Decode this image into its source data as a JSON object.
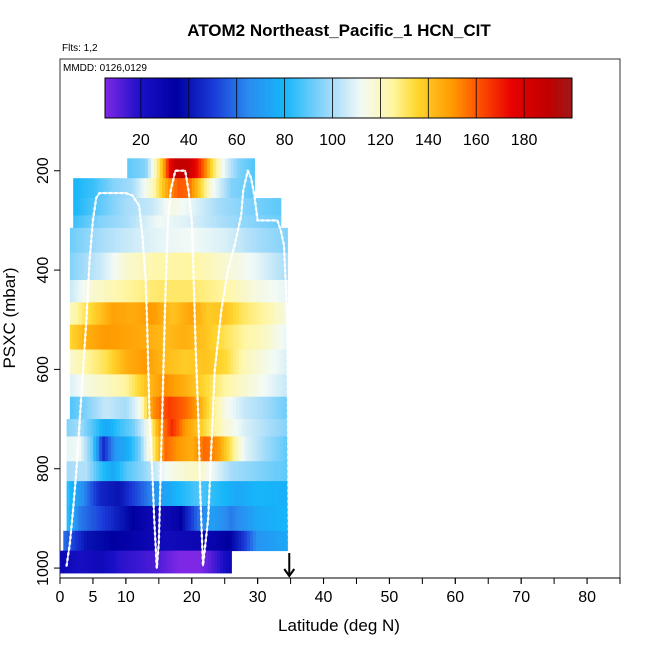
{
  "header": {
    "title": "ATOM2 Northeast_Pacific_1 HCN_CIT",
    "flights_label": "Flts: 1,2",
    "dates_label": "MMDD: 0126,0129"
  },
  "colorbar": {
    "min": 5,
    "max": 200,
    "tick_values": [
      20,
      40,
      60,
      80,
      100,
      120,
      140,
      160,
      180
    ],
    "tick_labels": [
      "20",
      "40",
      "60",
      "80",
      "100",
      "120",
      "140",
      "160",
      "180"
    ],
    "boundaries": [
      20,
      40,
      60,
      80,
      100,
      120,
      140,
      160,
      180
    ],
    "color_stops": [
      {
        "v": 5,
        "c": "#7e28e6"
      },
      {
        "v": 20,
        "c": "#1a10c8"
      },
      {
        "v": 35,
        "c": "#0000a0"
      },
      {
        "v": 50,
        "c": "#1a3ad8"
      },
      {
        "v": 65,
        "c": "#2a8cf0"
      },
      {
        "v": 80,
        "c": "#16b6fa"
      },
      {
        "v": 100,
        "c": "#a6dcfa"
      },
      {
        "v": 112,
        "c": "#f2faf6"
      },
      {
        "v": 125,
        "c": "#fff6a2"
      },
      {
        "v": 135,
        "c": "#ffd830"
      },
      {
        "v": 150,
        "c": "#ff9a00"
      },
      {
        "v": 160,
        "c": "#ff5800"
      },
      {
        "v": 175,
        "c": "#e80000"
      },
      {
        "v": 190,
        "c": "#c00000"
      },
      {
        "v": 200,
        "c": "#a01818"
      }
    ]
  },
  "chart_data": {
    "type": "heatmap",
    "title": "ATOM2 Northeast_Pacific_1 HCN_CIT",
    "xlabel": "Latitude (deg N)",
    "ylabel": "PSXC (mbar)",
    "x_ticks": [
      0,
      5,
      10,
      20,
      30,
      40,
      50,
      60,
      70,
      80
    ],
    "x_tick_labels": [
      "0",
      "5",
      "10",
      "20",
      "30",
      "40",
      "50",
      "60",
      "70",
      "80"
    ],
    "y_ticks": [
      200,
      400,
      600,
      800,
      1000
    ],
    "y_tick_labels": [
      "200",
      "400",
      "600",
      "800",
      "1000"
    ],
    "xlim": [
      0,
      85
    ],
    "ylim": [
      1020,
      -25
    ],
    "layers": [
      {
        "p0": 175,
        "p1": 215,
        "x0": 10.2,
        "x1": 29.5,
        "knots": [
          [
            10.2,
            90
          ],
          [
            13,
            95
          ],
          [
            15.5,
            140
          ],
          [
            16.5,
            170
          ],
          [
            17.5,
            188
          ],
          [
            19.5,
            188
          ],
          [
            21,
            170
          ],
          [
            22,
            155
          ],
          [
            23,
            135
          ],
          [
            25,
            110
          ],
          [
            27,
            95
          ],
          [
            29.5,
            88
          ]
        ]
      },
      {
        "p0": 215,
        "p1": 255,
        "x0": 2,
        "x1": 29.5,
        "knots": [
          [
            2,
            80
          ],
          [
            5,
            85
          ],
          [
            8,
            95
          ],
          [
            11,
            100
          ],
          [
            14,
            120
          ],
          [
            16.5,
            150
          ],
          [
            18,
            160
          ],
          [
            19.5,
            158
          ],
          [
            21,
            140
          ],
          [
            23,
            115
          ],
          [
            26,
            95
          ],
          [
            29.5,
            90
          ]
        ]
      },
      {
        "p0": 255,
        "p1": 290,
        "x0": 2,
        "x1": 33.5,
        "knots": [
          [
            2,
            80
          ],
          [
            6,
            90
          ],
          [
            10,
            100
          ],
          [
            14,
            105
          ],
          [
            17,
            115
          ],
          [
            20,
            110
          ],
          [
            24,
            100
          ],
          [
            28,
            95
          ],
          [
            33.5,
            90
          ]
        ]
      },
      {
        "p0": 290,
        "p1": 315,
        "x0": 2,
        "x1": 33.5,
        "knots": [
          [
            2,
            85
          ],
          [
            6,
            95
          ],
          [
            10,
            100
          ],
          [
            15,
            112
          ],
          [
            20,
            108
          ],
          [
            25,
            100
          ],
          [
            30,
            95
          ],
          [
            33.5,
            92
          ]
        ]
      },
      {
        "p0": 315,
        "p1": 365,
        "x0": 1.5,
        "x1": 34.5,
        "knots": [
          [
            1.5,
            92
          ],
          [
            6,
            100
          ],
          [
            10,
            105
          ],
          [
            15,
            110
          ],
          [
            20,
            112
          ],
          [
            25,
            108
          ],
          [
            30,
            100
          ],
          [
            34.5,
            95
          ]
        ]
      },
      {
        "p0": 365,
        "p1": 420,
        "x0": 1.5,
        "x1": 34.5,
        "knots": [
          [
            1.5,
            95
          ],
          [
            6,
            105
          ],
          [
            10,
            118
          ],
          [
            15,
            124
          ],
          [
            20,
            125
          ],
          [
            25,
            118
          ],
          [
            30,
            110
          ],
          [
            34.5,
            100
          ]
        ]
      },
      {
        "p0": 420,
        "p1": 465,
        "x0": 1.5,
        "x1": 34.5,
        "knots": [
          [
            1.5,
            105
          ],
          [
            5,
            118
          ],
          [
            10,
            125
          ],
          [
            15,
            130
          ],
          [
            20,
            130
          ],
          [
            25,
            125
          ],
          [
            30,
            115
          ],
          [
            34.5,
            110
          ]
        ]
      },
      {
        "p0": 465,
        "p1": 510,
        "x0": 1.5,
        "x1": 34.5,
        "knots": [
          [
            1.5,
            120
          ],
          [
            4,
            132
          ],
          [
            8,
            148
          ],
          [
            11,
            146
          ],
          [
            14,
            150
          ],
          [
            17,
            140
          ],
          [
            20,
            148
          ],
          [
            22.5,
            138
          ],
          [
            25,
            140
          ],
          [
            28,
            130
          ],
          [
            31,
            125
          ],
          [
            34.5,
            115
          ]
        ]
      },
      {
        "p0": 510,
        "p1": 560,
        "x0": 1.5,
        "x1": 34.5,
        "knots": [
          [
            1.5,
            135
          ],
          [
            4,
            145
          ],
          [
            7,
            150
          ],
          [
            10,
            148
          ],
          [
            13,
            146
          ],
          [
            16,
            142
          ],
          [
            19,
            145
          ],
          [
            22,
            140
          ],
          [
            25,
            132
          ],
          [
            28,
            125
          ],
          [
            31,
            120
          ],
          [
            34.5,
            110
          ]
        ]
      },
      {
        "p0": 560,
        "p1": 610,
        "x0": 1.5,
        "x1": 34.5,
        "knots": [
          [
            1.5,
            118
          ],
          [
            4,
            125
          ],
          [
            7,
            132
          ],
          [
            10,
            145
          ],
          [
            13,
            150
          ],
          [
            16,
            142
          ],
          [
            19,
            138
          ],
          [
            22,
            140
          ],
          [
            25,
            135
          ],
          [
            28,
            122
          ],
          [
            31,
            115
          ],
          [
            34.5,
            108
          ]
        ]
      },
      {
        "p0": 610,
        "p1": 655,
        "x0": 1.5,
        "x1": 34.5,
        "knots": [
          [
            1.5,
            108
          ],
          [
            4,
            115
          ],
          [
            7,
            120
          ],
          [
            10,
            125
          ],
          [
            13,
            140
          ],
          [
            16,
            152
          ],
          [
            19,
            145
          ],
          [
            22,
            135
          ],
          [
            25,
            125
          ],
          [
            28,
            118
          ],
          [
            31,
            112
          ],
          [
            34.5,
            105
          ]
        ]
      },
      {
        "p0": 655,
        "p1": 700,
        "x0": 1.5,
        "x1": 34.5,
        "knots": [
          [
            1.5,
            88
          ],
          [
            4,
            95
          ],
          [
            7,
            105
          ],
          [
            10,
            100
          ],
          [
            12,
            112
          ],
          [
            14,
            150
          ],
          [
            16.5,
            165
          ],
          [
            19,
            158
          ],
          [
            21,
            148
          ],
          [
            23,
            130
          ],
          [
            25,
            115
          ],
          [
            28,
            105
          ],
          [
            31,
            100
          ],
          [
            34.5,
            92
          ]
        ]
      },
      {
        "p0": 700,
        "p1": 735,
        "x0": 1,
        "x1": 34.5,
        "knots": [
          [
            1,
            95
          ],
          [
            3,
            100
          ],
          [
            5,
            88
          ],
          [
            7,
            75
          ],
          [
            9,
            85
          ],
          [
            11,
            92
          ],
          [
            13,
            110
          ],
          [
            15,
            148
          ],
          [
            17,
            168
          ],
          [
            19,
            150
          ],
          [
            21,
            140
          ],
          [
            23,
            128
          ],
          [
            25,
            118
          ],
          [
            28,
            108
          ],
          [
            31,
            102
          ],
          [
            34.5,
            95
          ]
        ]
      },
      {
        "p0": 735,
        "p1": 785,
        "x0": 1,
        "x1": 34.5,
        "knots": [
          [
            1,
            110
          ],
          [
            3,
            112
          ],
          [
            5,
            90
          ],
          [
            6.5,
            45
          ],
          [
            8.5,
            70
          ],
          [
            10,
            75
          ],
          [
            12,
            92
          ],
          [
            14,
            125
          ],
          [
            16,
            158
          ],
          [
            18,
            150
          ],
          [
            20,
            145
          ],
          [
            22,
            158
          ],
          [
            24,
            150
          ],
          [
            26,
            130
          ],
          [
            28,
            110
          ],
          [
            31,
            100
          ],
          [
            34.5,
            90
          ]
        ]
      },
      {
        "p0": 785,
        "p1": 825,
        "x0": 1,
        "x1": 34.5,
        "knots": [
          [
            1,
            100
          ],
          [
            4,
            102
          ],
          [
            6,
            85
          ],
          [
            8,
            75
          ],
          [
            10,
            88
          ],
          [
            13,
            98
          ],
          [
            16,
            112
          ],
          [
            19,
            118
          ],
          [
            21,
            120
          ],
          [
            23,
            112
          ],
          [
            26,
            100
          ],
          [
            30,
            95
          ],
          [
            34.5,
            90
          ]
        ]
      },
      {
        "p0": 825,
        "p1": 875,
        "x0": 1,
        "x1": 34.5,
        "knots": [
          [
            1,
            85
          ],
          [
            3,
            70
          ],
          [
            6,
            45
          ],
          [
            9,
            40
          ],
          [
            12,
            55
          ],
          [
            15,
            70
          ],
          [
            18,
            80
          ],
          [
            21,
            88
          ],
          [
            24,
            82
          ],
          [
            27,
            75
          ],
          [
            30,
            80
          ],
          [
            34.5,
            78
          ]
        ]
      },
      {
        "p0": 875,
        "p1": 925,
        "x0": 1,
        "x1": 34.5,
        "knots": [
          [
            1,
            85
          ],
          [
            3,
            62
          ],
          [
            6,
            52
          ],
          [
            9,
            42
          ],
          [
            12,
            32
          ],
          [
            15,
            25
          ],
          [
            18,
            32
          ],
          [
            21,
            60
          ],
          [
            23,
            72
          ],
          [
            26,
            62
          ],
          [
            30,
            75
          ],
          [
            34.5,
            80
          ]
        ]
      },
      {
        "p0": 925,
        "p1": 965,
        "x0": 0.5,
        "x1": 34.5,
        "knots": [
          [
            0.5,
            60
          ],
          [
            4,
            40
          ],
          [
            8,
            35
          ],
          [
            12,
            30
          ],
          [
            16,
            25
          ],
          [
            20,
            28
          ],
          [
            23,
            30
          ],
          [
            26,
            36
          ],
          [
            28,
            50
          ],
          [
            30,
            68
          ],
          [
            34.5,
            75
          ]
        ]
      },
      {
        "p0": 965,
        "p1": 1010,
        "x0": 0,
        "x1": 26,
        "knots": [
          [
            0,
            28
          ],
          [
            3,
            22
          ],
          [
            6,
            26
          ],
          [
            9,
            18
          ],
          [
            12,
            15
          ],
          [
            15,
            12
          ],
          [
            18,
            5
          ],
          [
            20,
            3
          ],
          [
            22,
            7
          ],
          [
            24,
            16
          ],
          [
            26,
            28
          ]
        ]
      }
    ],
    "flight_track": [
      [
        1,
        995
      ],
      [
        1.5,
        950
      ],
      [
        2,
        880
      ],
      [
        2.5,
        800
      ],
      [
        3,
        700
      ],
      [
        3.5,
        600
      ],
      [
        4,
        500
      ],
      [
        4.5,
        380
      ],
      [
        5,
        300
      ],
      [
        5.5,
        255
      ],
      [
        6,
        245
      ],
      [
        10,
        245
      ],
      [
        11,
        250
      ],
      [
        12,
        270
      ],
      [
        12.5,
        330
      ],
      [
        13,
        420
      ],
      [
        13.2,
        500
      ],
      [
        13.4,
        600
      ],
      [
        13.6,
        700
      ],
      [
        14,
        800
      ],
      [
        14.3,
        900
      ],
      [
        14.7,
        1000
      ],
      [
        15,
        950
      ],
      [
        15.3,
        800
      ],
      [
        15.7,
        600
      ],
      [
        16,
        450
      ],
      [
        16.4,
        300
      ],
      [
        16.8,
        240
      ],
      [
        17.5,
        200
      ],
      [
        19,
        200
      ],
      [
        19.5,
        240
      ],
      [
        20,
        300
      ],
      [
        20.3,
        420
      ],
      [
        20.6,
        560
      ],
      [
        21,
        700
      ],
      [
        21.3,
        850
      ],
      [
        21.7,
        995
      ],
      [
        22.5,
        900
      ],
      [
        23,
        750
      ],
      [
        23.5,
        600
      ],
      [
        24.5,
        480
      ],
      [
        25.5,
        400
      ],
      [
        26.5,
        350
      ],
      [
        27.5,
        290
      ],
      [
        27.8,
        240
      ],
      [
        28.5,
        200
      ],
      [
        29,
        215
      ],
      [
        29.5,
        250
      ],
      [
        30,
        300
      ],
      [
        33,
        300
      ],
      [
        33.5,
        320
      ],
      [
        34,
        350
      ],
      [
        34.5,
        500
      ],
      [
        34.6,
        700
      ],
      [
        34.7,
        880
      ],
      [
        34.8,
        990
      ]
    ],
    "grid": false,
    "legend": "colorbar-top"
  }
}
